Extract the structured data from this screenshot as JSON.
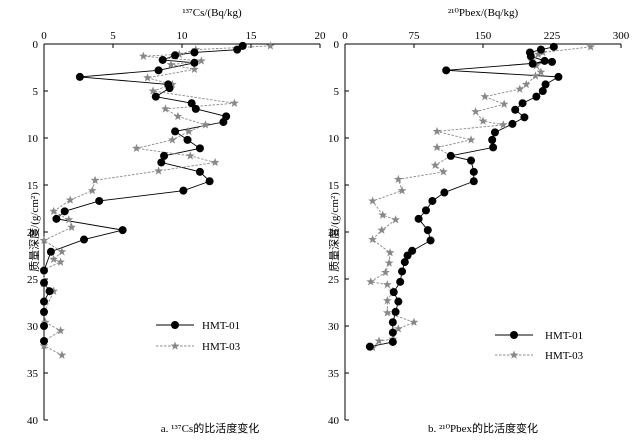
{
  "chart_data": [
    {
      "type": "line",
      "panel_caption": "a. ¹³⁷Cs的比活度变化",
      "x_title": "¹³⁷Cs/(Bq/kg)",
      "y_title": "质量深度/(g/cm²)",
      "xlim": [
        0,
        20
      ],
      "ylim": [
        0,
        40
      ],
      "y_inverted": true,
      "x_axis_position": "top",
      "x_ticks": [
        0,
        5,
        10,
        15,
        20
      ],
      "x_tick_labels": [
        "0",
        "5",
        "10",
        "15",
        "20"
      ],
      "y_ticks": [
        0,
        5,
        10,
        15,
        20,
        25,
        30,
        35,
        40
      ],
      "y_tick_labels": [
        "0",
        "5",
        "10",
        "15",
        "20",
        "25",
        "30",
        "35",
        "40"
      ],
      "legend_position": "bottom-right",
      "series": [
        {
          "name": "HMT-01",
          "style": "solid-circle",
          "color": "#000000",
          "points": [
            [
              14.4,
              0.2
            ],
            [
              14.0,
              0.6
            ],
            [
              10.9,
              0.9
            ],
            [
              9.5,
              1.2
            ],
            [
              8.6,
              1.7
            ],
            [
              10.9,
              2.0
            ],
            [
              8.3,
              2.8
            ],
            [
              2.6,
              3.5
            ],
            [
              9.0,
              4.3
            ],
            [
              9.1,
              4.7
            ],
            [
              8.1,
              5.6
            ],
            [
              10.7,
              6.3
            ],
            [
              11.0,
              6.9
            ],
            [
              13.2,
              7.7
            ],
            [
              13.0,
              8.3
            ],
            [
              9.5,
              9.3
            ],
            [
              10.4,
              10.2
            ],
            [
              11.3,
              11.1
            ],
            [
              8.7,
              11.9
            ],
            [
              8.5,
              12.6
            ],
            [
              11.3,
              13.6
            ],
            [
              12.0,
              14.6
            ],
            [
              10.1,
              15.6
            ],
            [
              4.0,
              16.7
            ],
            [
              1.5,
              17.8
            ],
            [
              0.9,
              18.6
            ],
            [
              5.7,
              19.8
            ],
            [
              2.9,
              20.8
            ],
            [
              0.5,
              22.1
            ],
            [
              0.0,
              24.1
            ],
            [
              0.0,
              25.4
            ],
            [
              0.4,
              26.3
            ],
            [
              0.0,
              27.4
            ],
            [
              0.0,
              28.5
            ],
            [
              0.0,
              30.0
            ],
            [
              0.0,
              31.6
            ]
          ]
        },
        {
          "name": "HMT-03",
          "style": "dashed-star",
          "color": "#888888",
          "points": [
            [
              16.4,
              0.2
            ],
            [
              11.0,
              0.6
            ],
            [
              9.8,
              1.1
            ],
            [
              7.2,
              1.3
            ],
            [
              11.4,
              1.8
            ],
            [
              9.2,
              2.2
            ],
            [
              10.9,
              2.7
            ],
            [
              7.5,
              3.6
            ],
            [
              9.3,
              4.3
            ],
            [
              7.9,
              5.0
            ],
            [
              13.8,
              6.3
            ],
            [
              8.8,
              6.9
            ],
            [
              9.7,
              7.7
            ],
            [
              11.7,
              8.6
            ],
            [
              10.5,
              9.3
            ],
            [
              9.3,
              10.2
            ],
            [
              6.7,
              11.1
            ],
            [
              10.6,
              11.9
            ],
            [
              12.4,
              12.6
            ],
            [
              8.3,
              13.5
            ],
            [
              3.7,
              14.5
            ],
            [
              3.5,
              15.6
            ],
            [
              1.9,
              16.6
            ],
            [
              0.7,
              17.8
            ],
            [
              1.8,
              18.7
            ],
            [
              2.0,
              19.5
            ],
            [
              0.0,
              20.9
            ],
            [
              1.3,
              22.1
            ],
            [
              0.7,
              22.9
            ],
            [
              1.2,
              23.2
            ],
            [
              0.0,
              24.0
            ],
            [
              0.0,
              25.5
            ],
            [
              0.7,
              26.3
            ],
            [
              0.0,
              28.6
            ],
            [
              0.1,
              29.6
            ],
            [
              1.2,
              30.5
            ],
            [
              0.0,
              31.6
            ],
            [
              0.0,
              32.1
            ],
            [
              1.3,
              33.1
            ]
          ]
        }
      ]
    },
    {
      "type": "line",
      "panel_caption": "b. ²¹⁰Pbex的比活度变化",
      "x_title": "²¹⁰Pbex/(Bq/kg)",
      "y_title": "质量深度/(g/cm²)",
      "xlim": [
        0,
        300
      ],
      "ylim": [
        0,
        40
      ],
      "y_inverted": true,
      "x_axis_position": "top",
      "x_ticks": [
        0,
        75,
        150,
        225,
        300
      ],
      "x_tick_labels": [
        "0",
        "75",
        "150",
        "225",
        "300"
      ],
      "y_ticks": [
        0,
        5,
        10,
        15,
        20,
        25,
        30,
        35,
        40
      ],
      "y_tick_labels": [
        "0",
        "5",
        "10",
        "15",
        "20",
        "25",
        "30",
        "35",
        "40"
      ],
      "legend_position": "bottom-right",
      "series": [
        {
          "name": "HMT-01",
          "style": "solid-circle",
          "color": "#000000",
          "points": [
            [
              227,
              0.3
            ],
            [
              213,
              0.6
            ],
            [
              201,
              0.9
            ],
            [
              202,
              1.3
            ],
            [
              217,
              1.8
            ],
            [
              204,
              2.1
            ],
            [
              225,
              1.9
            ],
            [
              110,
              2.8
            ],
            [
              232,
              3.5
            ],
            [
              218,
              4.3
            ],
            [
              215,
              5.0
            ],
            [
              208,
              5.6
            ],
            [
              193,
              6.3
            ],
            [
              185,
              7.0
            ],
            [
              195,
              7.8
            ],
            [
              182,
              8.5
            ],
            [
              163,
              9.4
            ],
            [
              160,
              10.2
            ],
            [
              161,
              11.0
            ],
            [
              115,
              11.9
            ],
            [
              137,
              12.4
            ],
            [
              140,
              13.6
            ],
            [
              140,
              14.6
            ],
            [
              108,
              15.8
            ],
            [
              95,
              16.7
            ],
            [
              88,
              17.7
            ],
            [
              80,
              18.6
            ],
            [
              90,
              19.8
            ],
            [
              93,
              20.9
            ],
            [
              73,
              22.0
            ],
            [
              68,
              22.5
            ],
            [
              65,
              23.2
            ],
            [
              62,
              24.2
            ],
            [
              60,
              25.3
            ],
            [
              53,
              26.4
            ],
            [
              58,
              27.4
            ],
            [
              55,
              28.5
            ],
            [
              52,
              29.6
            ],
            [
              52,
              30.7
            ],
            [
              52,
              31.7
            ],
            [
              27,
              32.2
            ]
          ]
        },
        {
          "name": "HMT-03",
          "style": "dashed-star",
          "color": "#888888",
          "points": [
            [
              267,
              0.3
            ],
            [
              215,
              0.9
            ],
            [
              210,
              1.1
            ],
            [
              203,
              1.8
            ],
            [
              208,
              2.3
            ],
            [
              213,
              3.0
            ],
            [
              207,
              3.4
            ],
            [
              197,
              4.3
            ],
            [
              190,
              4.8
            ],
            [
              152,
              5.6
            ],
            [
              173,
              6.4
            ],
            [
              142,
              7.2
            ],
            [
              150,
              8.2
            ],
            [
              172,
              8.6
            ],
            [
              100,
              9.3
            ],
            [
              137,
              10.2
            ],
            [
              100,
              11.0
            ],
            [
              115,
              11.9
            ],
            [
              98,
              12.9
            ],
            [
              107,
              13.6
            ],
            [
              58,
              14.4
            ],
            [
              62,
              15.6
            ],
            [
              30,
              16.7
            ],
            [
              41,
              18.2
            ],
            [
              55,
              18.7
            ],
            [
              40,
              19.8
            ],
            [
              30,
              20.8
            ],
            [
              49,
              22.2
            ],
            [
              48,
              23.3
            ],
            [
              44,
              24.3
            ],
            [
              28,
              25.3
            ],
            [
              46,
              25.6
            ],
            [
              52,
              26.3
            ],
            [
              46,
              27.3
            ],
            [
              46,
              28.6
            ],
            [
              75,
              29.6
            ],
            [
              58,
              30.3
            ],
            [
              52,
              31.4
            ],
            [
              37,
              31.6
            ],
            [
              30,
              32.3
            ]
          ]
        }
      ]
    }
  ]
}
